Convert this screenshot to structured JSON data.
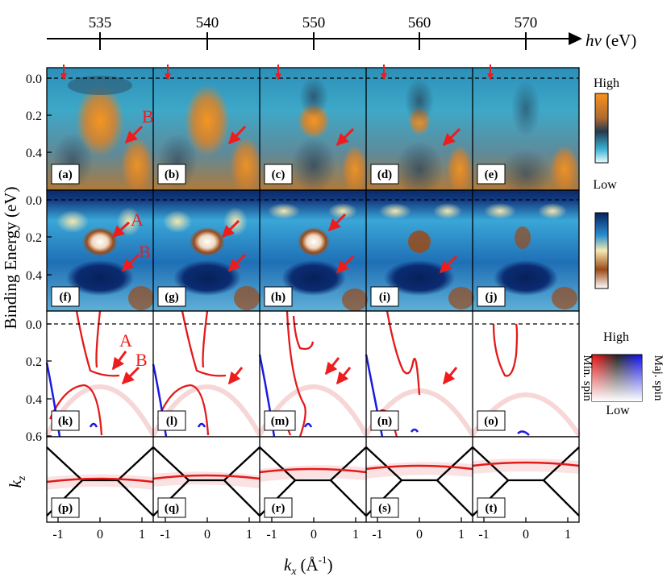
{
  "figure": {
    "hv_axis": {
      "label": "hν",
      "unit": "(eV)",
      "ticks": [
        "535",
        "540",
        "550",
        "560",
        "570"
      ]
    },
    "y_axis_label": "Binding Energy (eV)",
    "kz_label": "k",
    "kz_sub": "z",
    "x_axis_label": {
      "k": "k",
      "sub": "x",
      "unit_open": "(Å",
      "sup": "-1",
      "unit_close": ")"
    },
    "x_ticks": [
      "-1",
      "0",
      "1"
    ],
    "y_ticks": [
      "0.0",
      "0.2",
      "0.4",
      "0.6"
    ],
    "panel_labels": [
      [
        "(a)",
        "(b)",
        "(c)",
        "(d)",
        "(e)"
      ],
      [
        "(f)",
        "(g)",
        "(h)",
        "(i)",
        "(j)"
      ],
      [
        "(k)",
        "(l)",
        "(m)",
        "(n)",
        "(o)"
      ],
      [
        "(p)",
        "(q)",
        "(r)",
        "(s)",
        "(t)"
      ]
    ],
    "annotations": {
      "A": "A",
      "B": "B"
    },
    "colorbar1": {
      "high": "High",
      "low": "Low"
    },
    "colorbar3": {
      "high": "High",
      "low": "Low",
      "min": "Min. spin",
      "maj": "Maj. spin"
    },
    "colors": {
      "arrow": "#ee1c1c",
      "calc_band": "#e31a1a",
      "maj_band": "#1a1ae3",
      "bz": "#000000"
    }
  }
}
